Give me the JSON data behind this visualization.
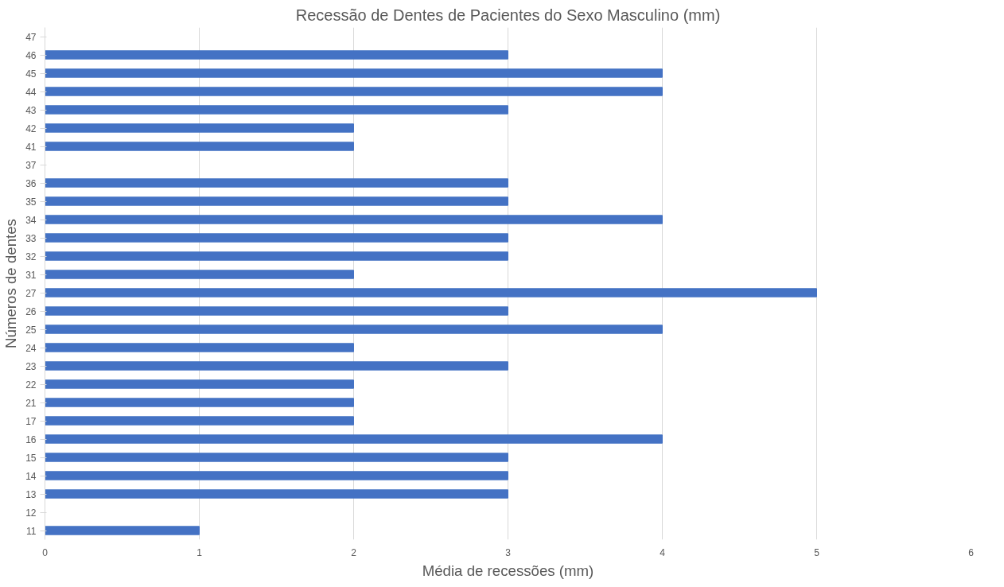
{
  "chart_data": {
    "type": "bar",
    "orientation": "horizontal",
    "title": "Recessão de Dentes de Pacientes do Sexo Masculino (mm)",
    "xlabel": "Média de recessões (mm)",
    "ylabel": "Números de dentes",
    "categories": [
      "47",
      "46",
      "45",
      "44",
      "43",
      "42",
      "41",
      "37",
      "36",
      "35",
      "34",
      "33",
      "32",
      "31",
      "27",
      "26",
      "25",
      "24",
      "23",
      "22",
      "21",
      "17",
      "16",
      "15",
      "14",
      "13",
      "12",
      "11"
    ],
    "values": [
      null,
      3,
      4,
      4,
      3,
      2,
      2,
      null,
      3,
      3,
      4,
      3,
      3,
      2,
      5,
      3,
      4,
      2,
      3,
      2,
      2,
      2,
      4,
      3,
      3,
      3,
      null,
      1
    ],
    "color": "#4472c4",
    "xlim": [
      0,
      6
    ],
    "xticks": [
      0,
      1,
      2,
      3,
      4,
      5,
      6
    ],
    "grid": "x"
  }
}
